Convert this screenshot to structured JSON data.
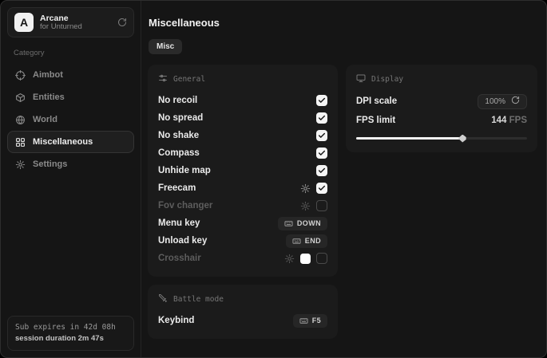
{
  "app": {
    "name": "Arcane",
    "subtitle": "for Unturned"
  },
  "sidebar": {
    "category_label": "Category",
    "items": [
      {
        "label": "Aimbot",
        "icon": "crosshair-icon",
        "selected": false
      },
      {
        "label": "Entities",
        "icon": "box-icon",
        "selected": false
      },
      {
        "label": "World",
        "icon": "globe-icon",
        "selected": false
      },
      {
        "label": "Miscellaneous",
        "icon": "grid-icon",
        "selected": true
      },
      {
        "label": "Settings",
        "icon": "gear-icon",
        "selected": false
      }
    ],
    "subscription": {
      "expires": "Sub expires in 42d 08h",
      "session": "session duration 2m 47s"
    }
  },
  "header": {
    "title": "Miscellaneous",
    "tab": "Misc"
  },
  "panels": {
    "general": {
      "title": "General",
      "icon": "sliders-icon",
      "rows": [
        {
          "label": "No recoil",
          "dim": false,
          "controls": [
            {
              "type": "checkbox",
              "checked": true
            }
          ]
        },
        {
          "label": "No spread",
          "dim": false,
          "controls": [
            {
              "type": "checkbox",
              "checked": true
            }
          ]
        },
        {
          "label": "No shake",
          "dim": false,
          "controls": [
            {
              "type": "checkbox",
              "checked": true
            }
          ]
        },
        {
          "label": "Compass",
          "dim": false,
          "controls": [
            {
              "type": "checkbox",
              "checked": true
            }
          ]
        },
        {
          "label": "Unhide map",
          "dim": false,
          "controls": [
            {
              "type": "checkbox",
              "checked": true
            }
          ]
        },
        {
          "label": "Freecam",
          "dim": false,
          "controls": [
            {
              "type": "gear"
            },
            {
              "type": "checkbox",
              "checked": true
            }
          ]
        },
        {
          "label": "Fov changer",
          "dim": true,
          "controls": [
            {
              "type": "gear"
            },
            {
              "type": "checkbox",
              "checked": false
            }
          ]
        },
        {
          "label": "Menu key",
          "dim": false,
          "controls": [
            {
              "type": "key",
              "key": "DOWN"
            }
          ]
        },
        {
          "label": "Unload key",
          "dim": false,
          "controls": [
            {
              "type": "key",
              "key": "END"
            }
          ]
        },
        {
          "label": "Crosshair",
          "dim": true,
          "controls": [
            {
              "type": "gear"
            },
            {
              "type": "swatch",
              "color": "#ffffff"
            },
            {
              "type": "checkbox",
              "checked": false
            }
          ]
        }
      ]
    },
    "display": {
      "title": "Display",
      "icon": "monitor-icon",
      "dpi_label": "DPI scale",
      "dpi_value": "100%",
      "fps_label": "FPS limit",
      "fps_value": "144",
      "fps_unit": "FPS",
      "fps_slider_percent": 62
    },
    "battle": {
      "title": "Battle mode",
      "icon": "sword-icon",
      "rows": [
        {
          "label": "Keybind",
          "dim": false,
          "controls": [
            {
              "type": "key",
              "key": "F5"
            }
          ]
        }
      ]
    }
  },
  "colors": {
    "panel_bg": "#1b1b1b",
    "accent": "#f5f5f5",
    "checkbox_on": "#f5f5f5",
    "crosshair_swatch": "#ffffff"
  }
}
